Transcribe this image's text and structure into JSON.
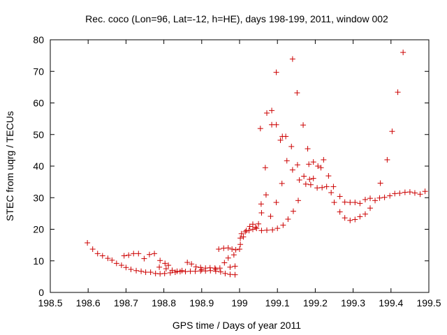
{
  "chart_data": {
    "type": "scatter",
    "title": "Rec. coco (Lon=96, Lat=-12, h=HE), days 198-199, 2011, window 002",
    "xlabel": "GPS time / Days of year 2011",
    "ylabel": "STEC from uqrg / TECUs",
    "xlim": [
      198.5,
      199.5
    ],
    "ylim": [
      0,
      80
    ],
    "x_ticks": [
      "198.5",
      "198.6",
      "198.7",
      "198.8",
      "198.9",
      "199",
      "199.1",
      "199.2",
      "199.3",
      "199.4",
      "199.5"
    ],
    "y_ticks": [
      "0",
      "10",
      "20",
      "30",
      "40",
      "50",
      "60",
      "70",
      "80"
    ],
    "grid": false,
    "marker": "plus",
    "color": "#cc0000",
    "series": [
      {
        "points": [
          [
            198.598,
            15.7
          ],
          [
            198.612,
            13.7
          ],
          [
            198.625,
            12.3
          ],
          [
            198.638,
            11.6
          ],
          [
            198.652,
            10.8
          ],
          [
            198.663,
            10.2
          ],
          [
            198.675,
            9.2
          ],
          [
            198.688,
            8.6
          ],
          [
            198.7,
            7.9
          ],
          [
            198.713,
            7.3
          ],
          [
            198.727,
            6.9
          ],
          [
            198.74,
            6.7
          ],
          [
            198.752,
            6.4
          ],
          [
            198.765,
            6.4
          ],
          [
            198.778,
            6.0
          ],
          [
            198.79,
            5.9
          ],
          [
            198.802,
            6.0
          ],
          [
            198.817,
            6.2
          ],
          [
            198.83,
            6.4
          ],
          [
            198.843,
            6.6
          ],
          [
            198.857,
            6.6
          ],
          [
            198.87,
            6.7
          ],
          [
            198.883,
            6.7
          ],
          [
            198.897,
            6.8
          ],
          [
            198.91,
            6.8
          ],
          [
            198.923,
            6.9
          ],
          [
            198.937,
            6.7
          ],
          [
            198.95,
            6.5
          ],
          [
            198.962,
            6.0
          ],
          [
            198.975,
            5.7
          ],
          [
            198.988,
            5.6
          ],
          [
            198.695,
            11.6
          ],
          [
            198.707,
            11.8
          ],
          [
            198.72,
            12.3
          ],
          [
            198.733,
            12.3
          ],
          [
            198.748,
            10.7
          ],
          [
            198.762,
            12.0
          ],
          [
            198.775,
            12.3
          ],
          [
            198.79,
            10.1
          ],
          [
            198.803,
            9.2
          ],
          [
            198.812,
            8.6
          ],
          [
            198.822,
            7.0
          ],
          [
            198.835,
            6.7
          ],
          [
            198.848,
            6.9
          ],
          [
            198.862,
            9.5
          ],
          [
            198.873,
            9.0
          ],
          [
            198.885,
            8.1
          ],
          [
            198.897,
            7.9
          ],
          [
            198.91,
            7.7
          ],
          [
            198.922,
            7.8
          ],
          [
            198.935,
            7.7
          ],
          [
            198.945,
            13.7
          ],
          [
            198.958,
            14.0
          ],
          [
            198.97,
            14.1
          ],
          [
            198.98,
            13.7
          ],
          [
            198.99,
            13.5
          ],
          [
            198.788,
            8.0
          ],
          [
            198.806,
            7.5
          ],
          [
            198.9,
            7.2
          ],
          [
            198.937,
            7.3
          ],
          [
            198.948,
            7.7
          ],
          [
            198.96,
            9.4
          ],
          [
            198.97,
            10.9
          ],
          [
            198.985,
            11.9
          ],
          [
            198.975,
            8.0
          ],
          [
            198.988,
            8.3
          ],
          [
            199.0,
            13.7
          ],
          [
            199.002,
            15.2
          ],
          [
            199.002,
            17.2
          ],
          [
            199.005,
            18.6
          ],
          [
            199.015,
            19.2
          ],
          [
            199.025,
            19.6
          ],
          [
            199.035,
            20.0
          ],
          [
            199.045,
            20.3
          ],
          [
            199.058,
            19.6
          ],
          [
            199.072,
            19.7
          ],
          [
            199.087,
            19.8
          ],
          [
            199.1,
            20.3
          ],
          [
            199.115,
            21.3
          ],
          [
            199.128,
            23.2
          ],
          [
            199.142,
            25.7
          ],
          [
            199.155,
            29.1
          ],
          [
            199.01,
            17.6
          ],
          [
            199.018,
            19.6
          ],
          [
            199.027,
            20.9
          ],
          [
            199.035,
            21.6
          ],
          [
            199.042,
            20.6
          ],
          [
            199.05,
            21.7
          ],
          [
            199.058,
            25.2
          ],
          [
            199.057,
            28.0
          ],
          [
            199.07,
            30.9
          ],
          [
            199.082,
            24.1
          ],
          [
            199.097,
            28.5
          ],
          [
            199.055,
            51.9
          ],
          [
            199.068,
            39.5
          ],
          [
            199.072,
            56.8
          ],
          [
            199.085,
            57.6
          ],
          [
            199.085,
            53.1
          ],
          [
            199.097,
            53.1
          ],
          [
            199.097,
            69.7
          ],
          [
            199.108,
            48.2
          ],
          [
            199.112,
            34.5
          ],
          [
            199.113,
            49.4
          ],
          [
            199.122,
            49.4
          ],
          [
            199.125,
            41.7
          ],
          [
            199.137,
            46.2
          ],
          [
            199.14,
            73.9
          ],
          [
            199.14,
            38.8
          ],
          [
            199.152,
            63.2
          ],
          [
            199.153,
            40.4
          ],
          [
            199.158,
            35.6
          ],
          [
            199.168,
            53.0
          ],
          [
            199.17,
            36.8
          ],
          [
            199.175,
            34.3
          ],
          [
            199.18,
            45.5
          ],
          [
            199.183,
            40.6
          ],
          [
            199.185,
            35.8
          ],
          [
            199.188,
            34.1
          ],
          [
            199.195,
            36.1
          ],
          [
            199.195,
            41.3
          ],
          [
            199.205,
            33.1
          ],
          [
            199.207,
            40.0
          ],
          [
            199.215,
            39.5
          ],
          [
            199.218,
            33.2
          ],
          [
            199.222,
            42.0
          ],
          [
            199.23,
            33.5
          ],
          [
            199.235,
            36.9
          ],
          [
            199.242,
            31.6
          ],
          [
            199.248,
            33.5
          ],
          [
            199.25,
            28.5
          ],
          [
            199.265,
            25.5
          ],
          [
            199.265,
            30.4
          ],
          [
            199.278,
            23.6
          ],
          [
            199.278,
            28.6
          ],
          [
            199.292,
            22.8
          ],
          [
            199.292,
            28.5
          ],
          [
            199.305,
            23.1
          ],
          [
            199.305,
            28.5
          ],
          [
            199.318,
            24.0
          ],
          [
            199.318,
            28.2
          ],
          [
            199.332,
            24.8
          ],
          [
            199.332,
            29.4
          ],
          [
            199.345,
            26.7
          ],
          [
            199.345,
            29.8
          ],
          [
            199.358,
            29.1
          ],
          [
            199.37,
            29.9
          ],
          [
            199.372,
            34.6
          ],
          [
            199.383,
            30.1
          ],
          [
            199.39,
            42.0
          ],
          [
            199.397,
            30.6
          ],
          [
            199.403,
            51.0
          ],
          [
            199.41,
            31.3
          ],
          [
            199.418,
            63.4
          ],
          [
            199.423,
            31.4
          ],
          [
            199.432,
            76.0
          ],
          [
            199.437,
            31.7
          ],
          [
            199.45,
            31.8
          ],
          [
            199.463,
            31.5
          ],
          [
            199.477,
            31.1
          ],
          [
            199.49,
            32.0
          ]
        ]
      }
    ]
  }
}
